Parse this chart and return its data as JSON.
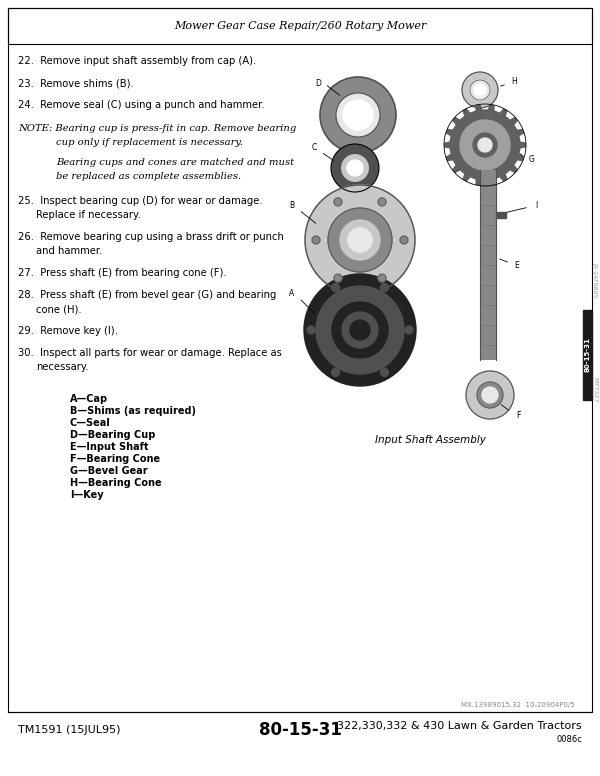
{
  "page_header": "Mower Gear Case Repair/260 Rotary Mower",
  "footer_left": "TM1591 (15JUL95)",
  "footer_center": "80-15-31",
  "footer_right": "322,330,332 & 430 Lawn & Garden Tractors",
  "footer_right_sub": "0086c",
  "legend": [
    "A—Cap",
    "B—Shims (as required)",
    "C—Seal",
    "D—Bearing Cup",
    "E—Input Shaft",
    "F—Bearing Cone",
    "G—Bevel Gear",
    "H—Bearing Cone",
    "I—Key"
  ],
  "diagram_caption": "Input Shaft Assembly",
  "bg_color": "#ffffff",
  "text_color": "#000000",
  "border_color": "#000000",
  "note_italic_color": "#000000",
  "sidebar_color": "#1a1a1a",
  "sidebar_text_color": "#ffffff",
  "small_text_color": "#888888",
  "diagram_bg": "#f5f5f5",
  "part_dark": "#505050",
  "part_mid": "#888888",
  "part_light": "#c8c8c8",
  "part_white": "#e8e8e8",
  "part_black": "#222222",
  "gear_dark": "#606060",
  "gear_light": "#a0a0a0"
}
